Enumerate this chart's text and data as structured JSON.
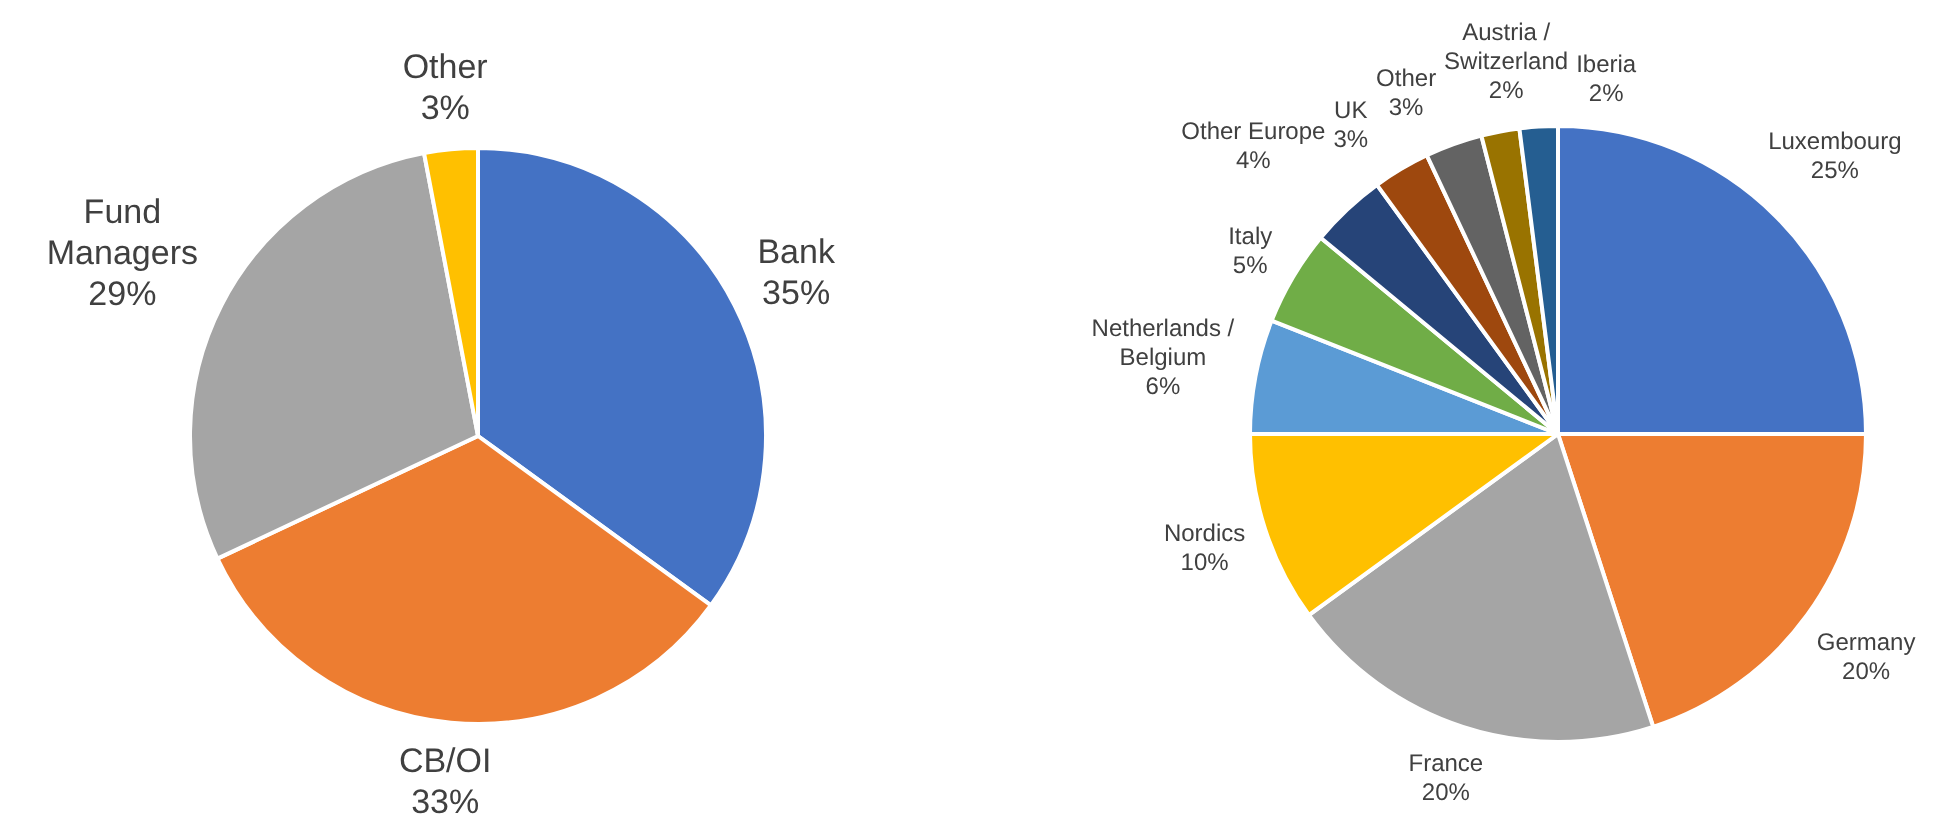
{
  "chart_data": [
    {
      "type": "pie",
      "categories": [
        "Bank",
        "CB/OI",
        "Fund Managers",
        "Other"
      ],
      "values": [
        35,
        33,
        29,
        3
      ],
      "colors": [
        "#4472c4",
        "#ed7d31",
        "#a5a5a5",
        "#ffc000"
      ],
      "value_labels": [
        "35%",
        "33%",
        "29%",
        "3%"
      ]
    },
    {
      "type": "pie",
      "categories": [
        "Luxembourg",
        "Germany",
        "France",
        "Nordics",
        "Netherlands / Belgium",
        "Italy",
        "Other Europe",
        "UK",
        "Other",
        "Austria / Switzerland",
        "Iberia"
      ],
      "values": [
        25,
        20,
        20,
        10,
        6,
        5,
        4,
        3,
        3,
        2,
        2
      ],
      "colors": [
        "#4472c4",
        "#ed7d31",
        "#a5a5a5",
        "#ffc000",
        "#5b9bd5",
        "#70ad47",
        "#264478",
        "#9e480e",
        "#636363",
        "#997300",
        "#255e91"
      ],
      "value_labels": [
        "25%",
        "20%",
        "20%",
        "10%",
        "6%",
        "5%",
        "4%",
        "3%",
        "3%",
        "2%",
        "2%"
      ]
    }
  ]
}
